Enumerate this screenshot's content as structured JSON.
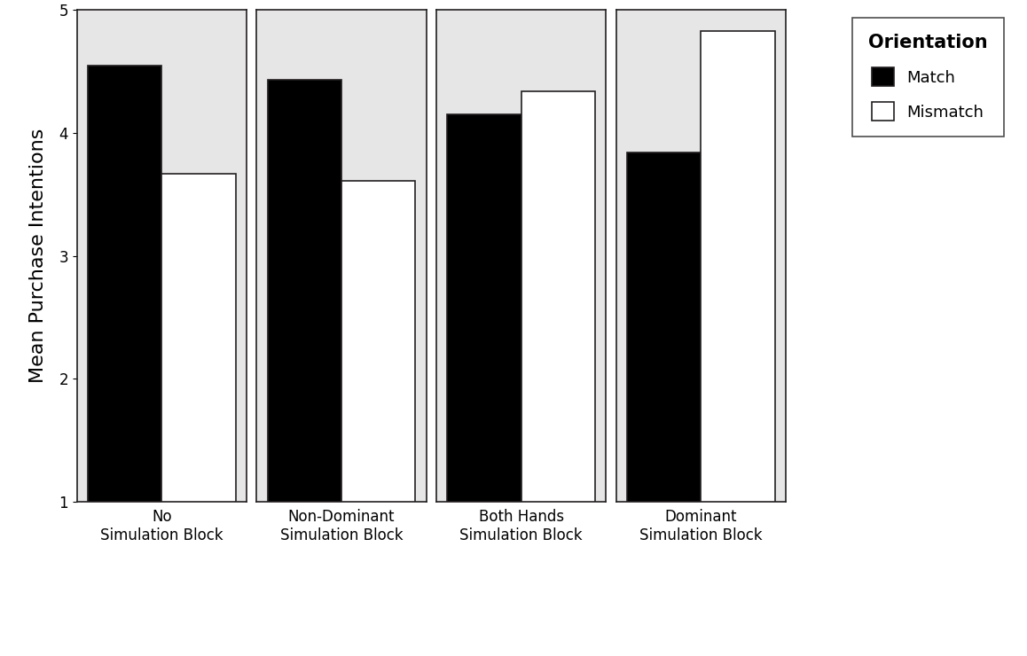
{
  "chart_data": [
    {
      "type": "bar",
      "categories": [
        "No\nSimulation Block"
      ],
      "series": [
        {
          "name": "Match",
          "color": "#000000",
          "values": [
            4.55
          ]
        },
        {
          "name": "Mismatch",
          "color": "#ffffff",
          "values": [
            3.67
          ]
        }
      ],
      "ylim": [
        1,
        5
      ],
      "yticks": [
        1,
        2,
        3,
        4,
        5
      ],
      "y_label": "Mean Purchase Intentions",
      "legend": "upper right",
      "legend_title": "Orientation"
    },
    {
      "type": "bar",
      "categories": [
        "Non-Dominant\nSimulation Block"
      ],
      "series": [
        {
          "name": "Match",
          "color": "#000000",
          "values": [
            4.43
          ]
        },
        {
          "name": "Mismatch",
          "color": "#ffffff",
          "values": [
            3.61
          ]
        }
      ],
      "ylim": [
        1,
        5
      ],
      "tick_labels": "x"
    },
    {
      "type": "bar",
      "categories": [
        "Both Hands\nSimulation Block"
      ],
      "series": [
        {
          "name": "Match",
          "color": "#000000",
          "values": [
            4.15
          ]
        },
        {
          "name": "Mismatch",
          "color": "#ffffff",
          "values": [
            4.34
          ]
        }
      ],
      "ylim": [
        1,
        5
      ],
      "tick_labels": "x"
    },
    {
      "type": "bar",
      "categories": [
        "Dominant\nSimulation Block"
      ],
      "series": [
        {
          "name": "Match",
          "color": "#000000",
          "values": [
            3.84
          ]
        },
        {
          "name": "Mismatch",
          "color": "#ffffff",
          "values": [
            4.83
          ]
        }
      ],
      "ylim": [
        1,
        5
      ],
      "tick_labels": "x"
    }
  ]
}
